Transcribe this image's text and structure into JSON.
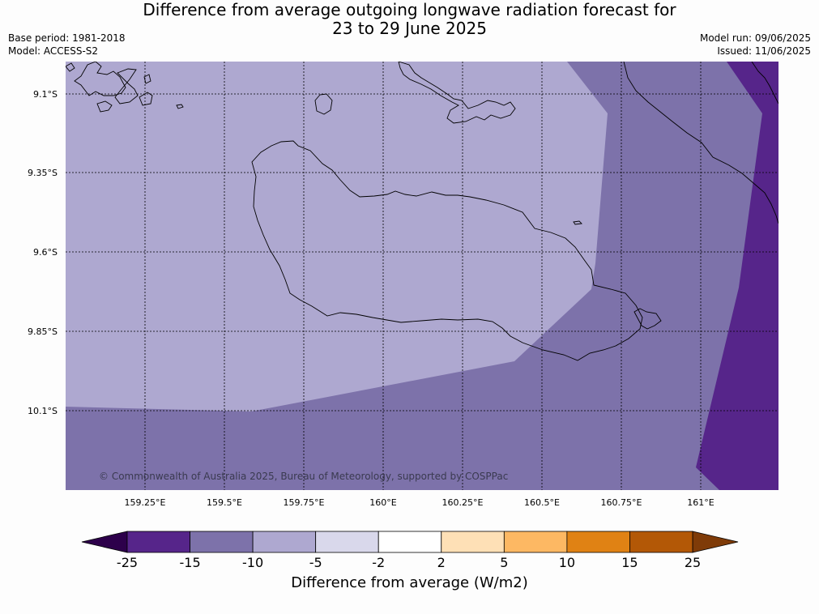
{
  "header": {
    "title_line1": "Difference from average outgoing longwave radiation forecast for",
    "title_line2": "23 to 29 June 2025",
    "base_period": "Base period: 1981-2018",
    "model": "Model: ACCESS-S2",
    "model_run": "Model run: 09/06/2025",
    "issued": "Issued: 11/06/2025"
  },
  "map": {
    "lat_labels": [
      "9.1°S",
      "9.35°S",
      "9.6°S",
      "9.85°S",
      "10.1°S"
    ],
    "lon_labels": [
      "159.25°E",
      "159.5°E",
      "159.75°E",
      "160°E",
      "160.25°E",
      "160.5°E",
      "160.75°E",
      "161°E"
    ],
    "copyright": "© Commonwealth of Australia 2025, Bureau of Meteorology, supported by COSPPac",
    "region_colors": {
      "minus5_to_minus10": "#aea8d0",
      "minus10_to_minus15": "#7d72aa",
      "minus15_to_minus25": "#56258a"
    }
  },
  "colorbar": {
    "label": "Difference from average (W/m2)",
    "ticks": [
      "-25",
      "-15",
      "-10",
      "-5",
      "-2",
      "2",
      "5",
      "10",
      "15",
      "25"
    ],
    "colors": [
      "#56258a",
      "#7d72aa",
      "#aea8d0",
      "#d9d8eb",
      "#ffffff",
      "#fee0b6",
      "#fdb863",
      "#e08214",
      "#b35806"
    ],
    "under_color": "#2d004b",
    "over_color": "#7f3b08"
  }
}
